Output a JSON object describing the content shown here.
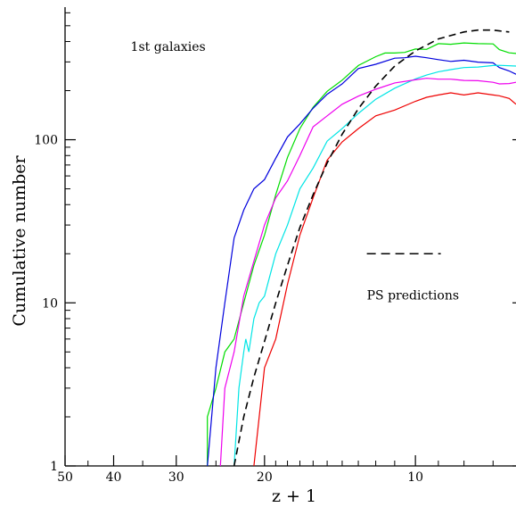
{
  "chart_data": {
    "type": "line",
    "xlabel": "z + 1",
    "ylabel": "Cumulative number",
    "x_scale": "log",
    "y_scale": "log",
    "x_reversed": true,
    "xlim": [
      50,
      6.3
    ],
    "ylim": [
      1,
      650
    ],
    "x_ticks": [
      {
        "value": 50,
        "label": "50"
      },
      {
        "value": 40,
        "label": "40"
      },
      {
        "value": 30,
        "label": "30"
      },
      {
        "value": 20,
        "label": "20"
      },
      {
        "value": 10,
        "label": "10"
      }
    ],
    "y_ticks": [
      {
        "value": 1,
        "label": "1"
      },
      {
        "value": 10,
        "label": "10"
      },
      {
        "value": 100,
        "label": "100"
      }
    ],
    "grid": false,
    "annotations": [
      {
        "id": "first",
        "text": "1st galaxies",
        "x": 37,
        "y": 350
      },
      {
        "id": "ps",
        "text": "PS predictions",
        "x": 12.5,
        "y": 10.5
      }
    ],
    "legend_sample": {
      "style": "dashed",
      "color": "#000000",
      "x": [
        12.5,
        8.9
      ],
      "y": 20
    },
    "series": [
      {
        "style": "solid",
        "color": "#00dd00",
        "x": [
          26,
          26,
          25,
          24,
          23,
          22,
          21,
          20,
          19,
          18,
          17,
          16,
          15,
          14,
          13,
          12,
          11.5,
          11,
          10.5,
          10,
          9.5,
          9,
          8.5,
          8,
          7.5,
          7,
          6.8,
          6.5,
          6.3
        ],
        "y": [
          1,
          2,
          3,
          5,
          6,
          10,
          17,
          26,
          46,
          78,
          117,
          158,
          198,
          232,
          285,
          323,
          340,
          340,
          343,
          360,
          358,
          388,
          385,
          392,
          388,
          387,
          357,
          341,
          338
        ]
      },
      {
        "style": "solid",
        "color": "#0000dd",
        "x": [
          26,
          25,
          24,
          23,
          22,
          21,
          20,
          19,
          18,
          17,
          16,
          15,
          14,
          13,
          12,
          11,
          10.5,
          10,
          9.5,
          9,
          8.5,
          8,
          7.5,
          7,
          6.8,
          6.5,
          6.3
        ],
        "y": [
          1,
          4,
          10,
          25,
          37,
          50,
          57,
          77,
          104,
          125,
          156,
          190,
          220,
          273,
          290,
          316,
          318,
          325,
          318,
          310,
          302,
          307,
          299,
          296,
          277,
          264,
          252
        ]
      },
      {
        "style": "solid",
        "color": "#00e5e5",
        "x": [
          23,
          22.5,
          22,
          21.8,
          21.5,
          21,
          20.5,
          20,
          19,
          18,
          17,
          16,
          15,
          14,
          13,
          12,
          11,
          10,
          9.5,
          9,
          8.5,
          8,
          7.5,
          7,
          6.8,
          6.3
        ],
        "y": [
          1,
          3,
          5,
          6,
          5,
          8,
          10,
          11,
          20,
          30,
          50,
          67,
          98,
          117,
          145,
          177,
          207,
          236,
          249,
          261,
          269,
          277,
          279,
          285,
          286,
          283
        ]
      },
      {
        "style": "solid",
        "color": "#ee00ee",
        "x": [
          24.5,
          24,
          23,
          22,
          21,
          20,
          19,
          18,
          17,
          16,
          15,
          14,
          13,
          12,
          11,
          10,
          9.5,
          9,
          8.5,
          8,
          7.5,
          7,
          6.8,
          6.5,
          6.3
        ],
        "y": [
          1,
          3,
          5,
          11,
          18,
          30,
          44,
          56,
          80,
          120,
          140,
          165,
          185,
          204,
          223,
          233,
          238,
          235,
          235,
          231,
          230,
          225,
          220,
          221,
          225
        ]
      },
      {
        "style": "solid",
        "color": "#ee0000",
        "x": [
          21,
          20,
          19,
          18,
          17,
          16,
          15,
          14,
          13,
          12,
          11,
          10,
          9.5,
          9,
          8.5,
          8,
          7.5,
          7,
          6.8,
          6.5,
          6.3
        ],
        "y": [
          1,
          4,
          6,
          13,
          26,
          44,
          75,
          97,
          117,
          140,
          152,
          172,
          182,
          188,
          194,
          188,
          194,
          188,
          186,
          179,
          165
        ]
      },
      {
        "style": "dashed",
        "color": "#000000",
        "x": [
          23,
          22,
          21,
          20,
          19,
          18,
          17,
          16,
          15,
          14,
          13,
          12,
          11,
          10,
          9,
          8,
          7.5,
          7,
          6.8,
          6.5
        ],
        "y": [
          1,
          2,
          3.5,
          5.8,
          10,
          17,
          29,
          46,
          72,
          108,
          155,
          213,
          283,
          350,
          415,
          458,
          470,
          470,
          465,
          458
        ]
      }
    ]
  }
}
